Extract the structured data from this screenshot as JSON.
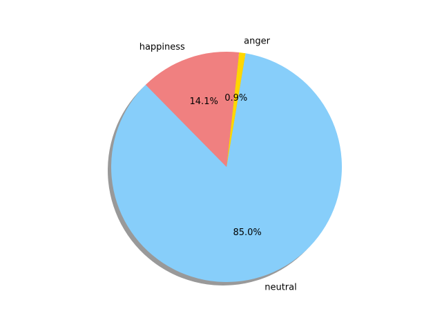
{
  "chart_data": {
    "type": "pie",
    "title": "",
    "categories": [
      "neutral",
      "anger",
      "happiness"
    ],
    "values": [
      85.0,
      0.9,
      14.1
    ],
    "value_labels": [
      "85.0%",
      "0.9%",
      "14.1%"
    ],
    "colors": [
      "#87cefa",
      "#ffd700",
      "#f08080"
    ],
    "shadow": true,
    "legend": "none"
  }
}
